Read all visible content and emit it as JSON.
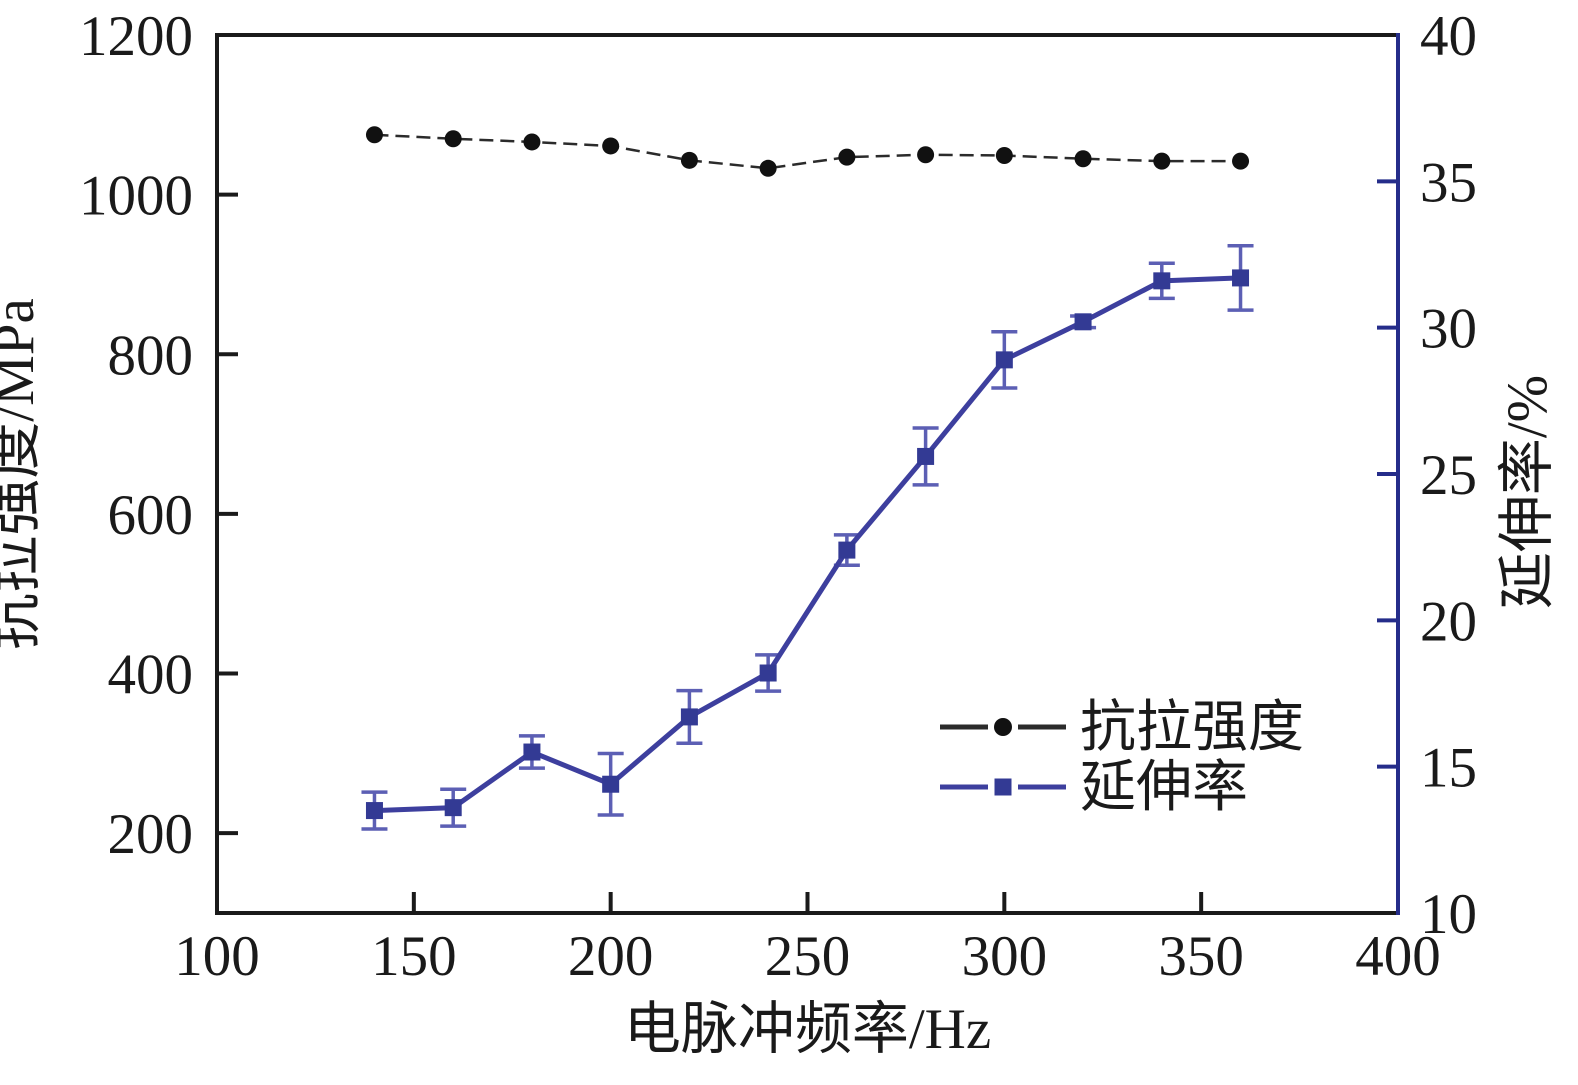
{
  "chart_data": {
    "type": "line",
    "title": "",
    "xlabel": "电脉冲频率/Hz",
    "ylabel_left": "抗拉强度/MPa",
    "ylabel_right": "延伸率/%",
    "xlim": [
      100,
      400
    ],
    "xticks": [
      100,
      150,
      200,
      250,
      300,
      350,
      400
    ],
    "ylim_left": [
      100,
      1200
    ],
    "yticks_left": [
      200,
      400,
      600,
      800,
      1000,
      1200
    ],
    "ylim_right": [
      10,
      40
    ],
    "yticks_right": [
      10,
      15,
      20,
      25,
      30,
      35,
      40
    ],
    "grid": false,
    "legend_position": "lower-right",
    "x": [
      140,
      160,
      180,
      200,
      220,
      240,
      260,
      280,
      300,
      320,
      340,
      360
    ],
    "series": [
      {
        "name": "抗拉强度",
        "axis": "left",
        "marker": "circle",
        "line_color": "#2b2b2b",
        "marker_color": "#111111",
        "line_style": "dashed",
        "values": [
          1075,
          1070,
          1066,
          1061,
          1043,
          1033,
          1047,
          1050,
          1049,
          1045,
          1042,
          1042
        ]
      },
      {
        "name": "延伸率",
        "axis": "right",
        "marker": "square",
        "line_color": "#3d3f9e",
        "marker_color": "#333a94",
        "error_color": "#5c5fb4",
        "line_style": "solid",
        "values": [
          13.5,
          13.6,
          15.5,
          14.4,
          16.7,
          18.2,
          22.4,
          25.6,
          28.9,
          30.2,
          31.6,
          31.7
        ],
        "errors": [
          0.63,
          0.63,
          0.55,
          1.05,
          0.9,
          0.62,
          0.52,
          0.97,
          0.96,
          0.2,
          0.6,
          1.1
        ]
      }
    ],
    "axis_colors": {
      "left": "#1a1a1a",
      "bottom": "#1a1a1a",
      "top": "#1a1a1a",
      "right": "#252d8a"
    }
  }
}
